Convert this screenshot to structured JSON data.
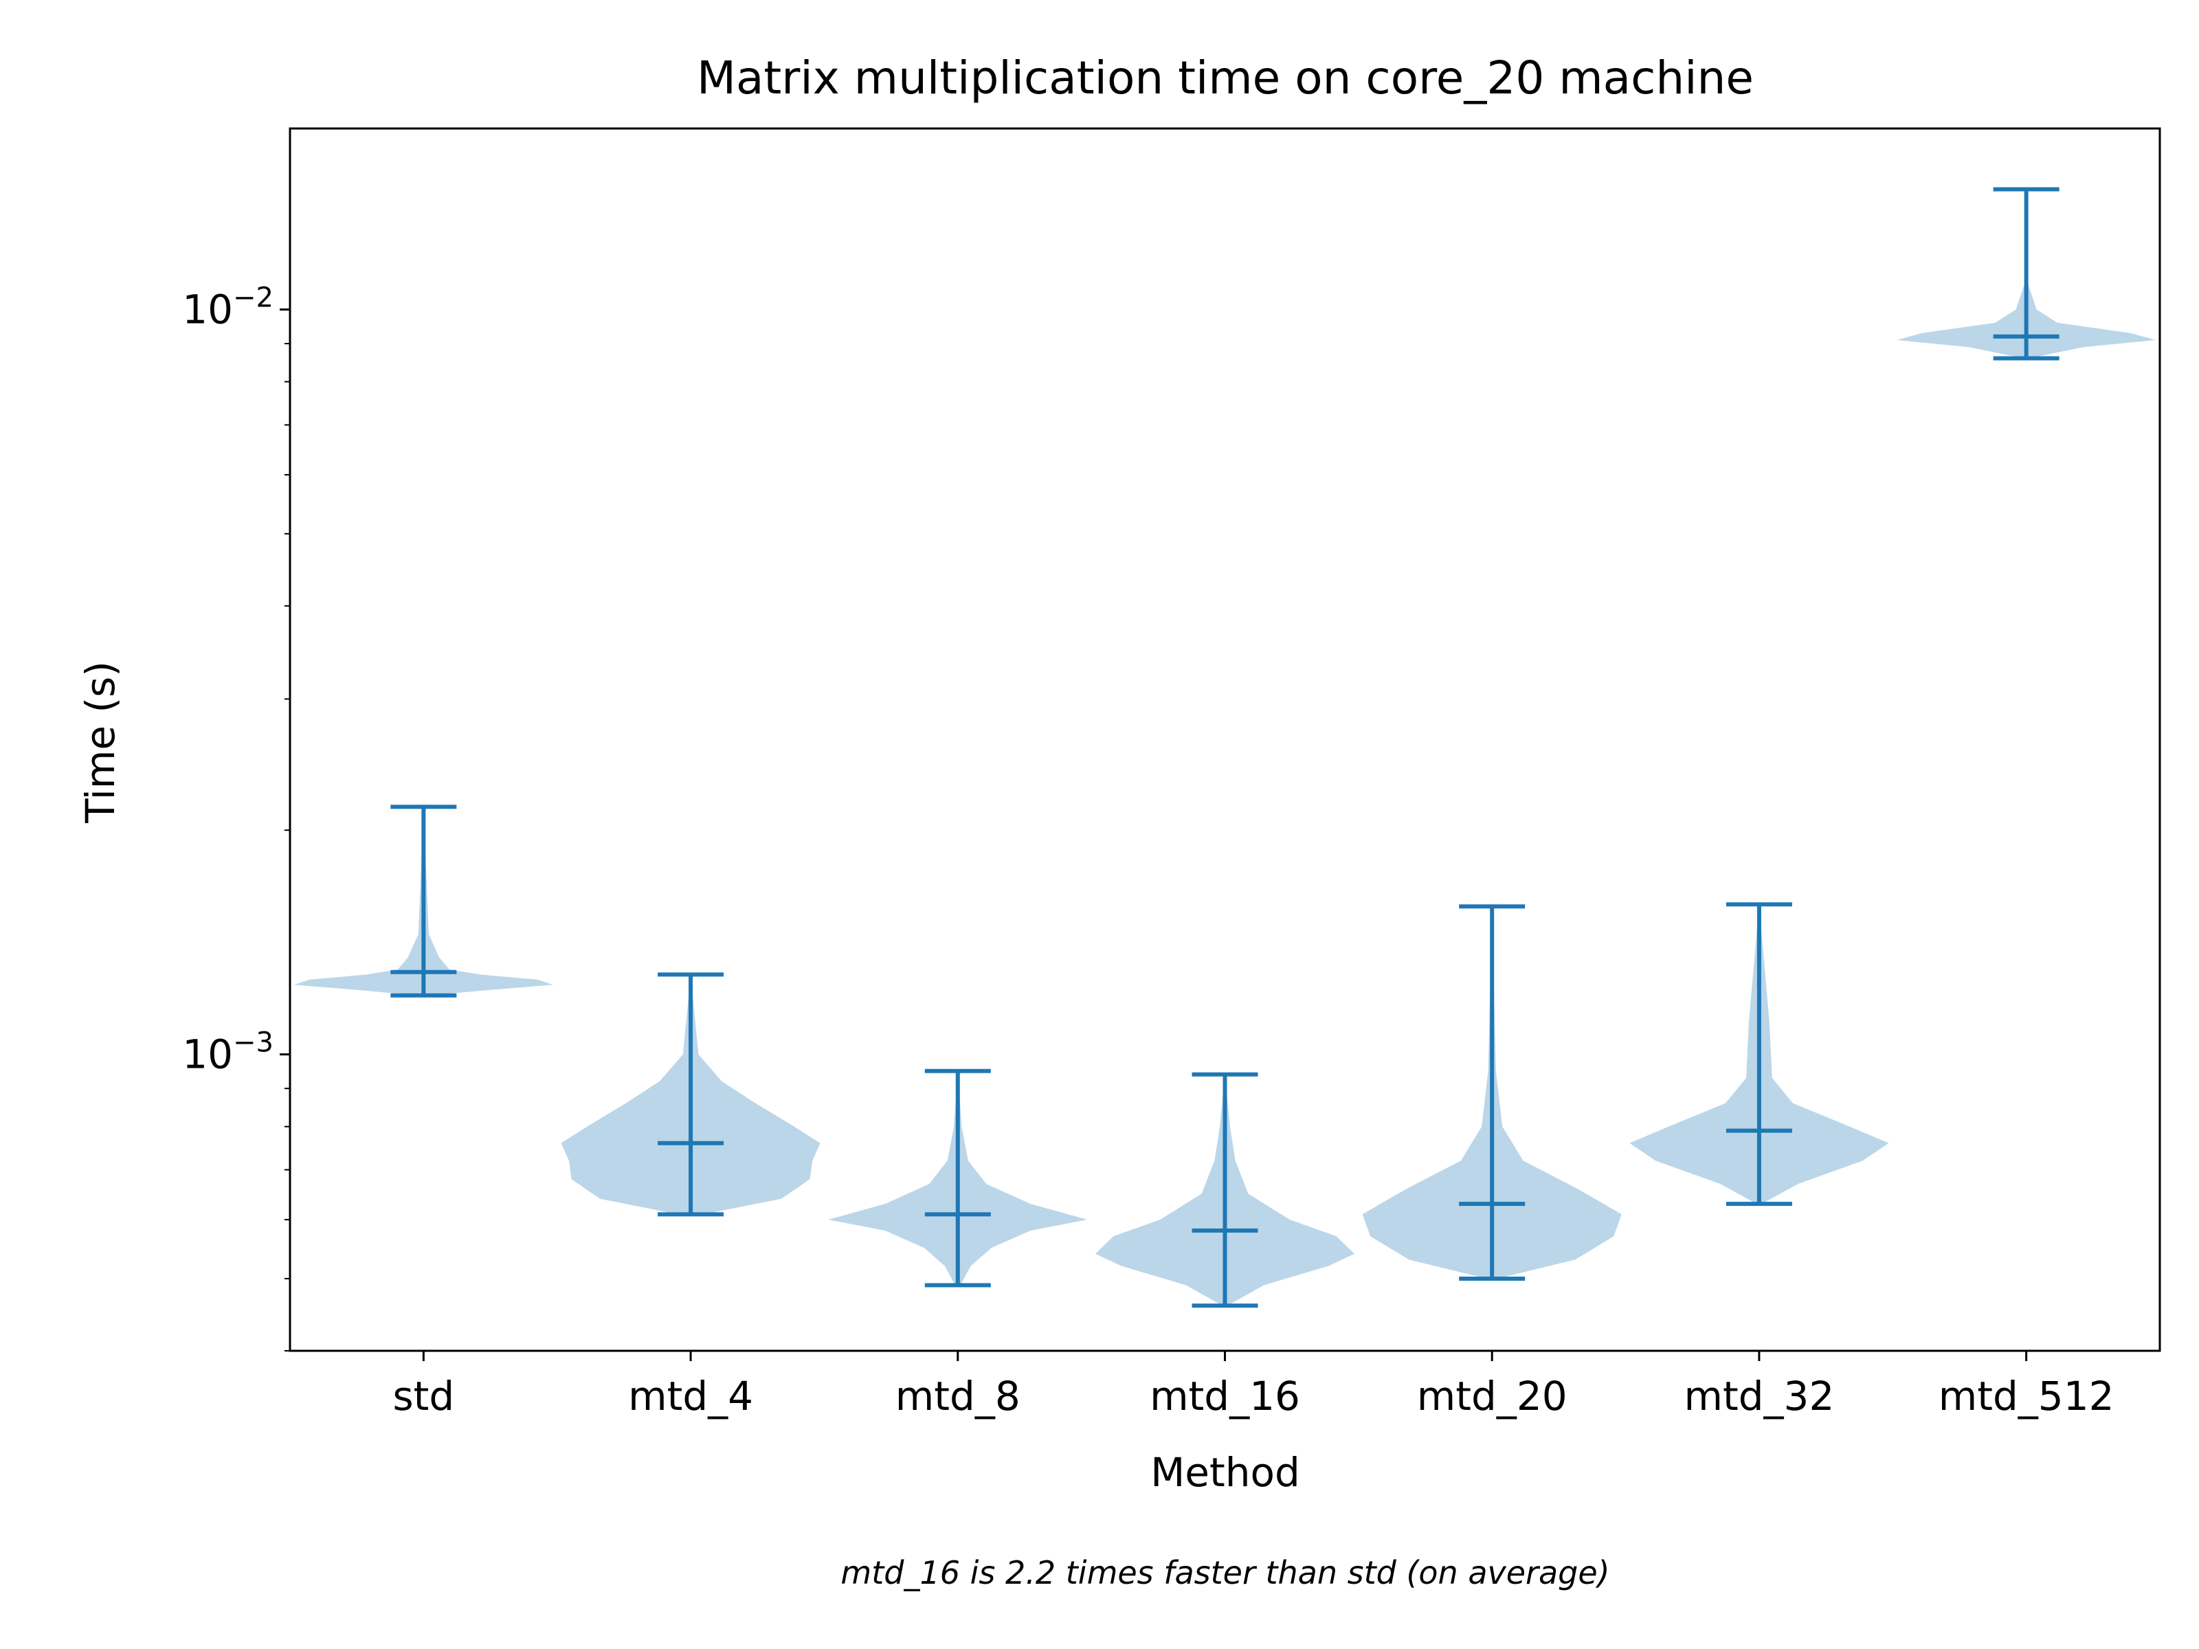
{
  "chart_data": {
    "type": "violin",
    "title": "Matrix multiplication time on core_20 machine",
    "xlabel": "Method",
    "ylabel": "Time (s)",
    "yscale": "log",
    "ylim": [
      0.0004,
      0.0175
    ],
    "ytick_labels": [
      {
        "value": 0.001,
        "base": "10",
        "exp": "−3"
      },
      {
        "value": 0.01,
        "base": "10",
        "exp": "−2"
      }
    ],
    "categories": [
      "std",
      "mtd_4",
      "mtd_8",
      "mtd_16",
      "mtd_20",
      "mtd_32",
      "mtd_512"
    ],
    "series": [
      {
        "min": 0.0012,
        "mean": 0.00129,
        "max": 0.00215,
        "profile": [
          [
            0.0012,
            0.02
          ],
          [
            0.00122,
            0.25
          ],
          [
            0.00124,
            0.5
          ],
          [
            0.00126,
            0.44
          ],
          [
            0.00128,
            0.22
          ],
          [
            0.0013,
            0.1
          ],
          [
            0.00135,
            0.06
          ],
          [
            0.00145,
            0.02
          ],
          [
            0.00215,
            0.0
          ]
        ]
      },
      {
        "min": 0.00061,
        "mean": 0.00076,
        "max": 0.00128,
        "profile": [
          [
            0.00061,
            0.05
          ],
          [
            0.00064,
            0.35
          ],
          [
            0.00068,
            0.46
          ],
          [
            0.00072,
            0.47
          ],
          [
            0.00076,
            0.5
          ],
          [
            0.0008,
            0.4
          ],
          [
            0.00086,
            0.25
          ],
          [
            0.00092,
            0.12
          ],
          [
            0.001,
            0.03
          ],
          [
            0.00128,
            0.0
          ]
        ]
      },
      {
        "min": 0.00049,
        "mean": 0.00061,
        "max": 0.00095,
        "profile": [
          [
            0.00049,
            0.01
          ],
          [
            0.00052,
            0.05
          ],
          [
            0.00055,
            0.13
          ],
          [
            0.00058,
            0.28
          ],
          [
            0.0006,
            0.5
          ],
          [
            0.00063,
            0.28
          ],
          [
            0.00067,
            0.11
          ],
          [
            0.00072,
            0.04
          ],
          [
            0.0008,
            0.015
          ],
          [
            0.00095,
            0.0
          ]
        ]
      },
      {
        "min": 0.00046,
        "mean": 0.00058,
        "max": 0.00094,
        "profile": [
          [
            0.00046,
            0.01
          ],
          [
            0.00049,
            0.15
          ],
          [
            0.00052,
            0.4
          ],
          [
            0.00054,
            0.5
          ],
          [
            0.00057,
            0.43
          ],
          [
            0.0006,
            0.25
          ],
          [
            0.00065,
            0.09
          ],
          [
            0.00072,
            0.04
          ],
          [
            0.0008,
            0.02
          ],
          [
            0.00094,
            0.0
          ]
        ]
      },
      {
        "min": 0.0005,
        "mean": 0.00063,
        "max": 0.00158,
        "profile": [
          [
            0.0005,
            0.02
          ],
          [
            0.00053,
            0.32
          ],
          [
            0.00057,
            0.47
          ],
          [
            0.00061,
            0.5
          ],
          [
            0.00066,
            0.33
          ],
          [
            0.00072,
            0.12
          ],
          [
            0.0008,
            0.04
          ],
          [
            0.00095,
            0.015
          ],
          [
            0.00158,
            0.0
          ]
        ]
      },
      {
        "min": 0.00063,
        "mean": 0.00079,
        "max": 0.00159,
        "profile": [
          [
            0.00063,
            0.01
          ],
          [
            0.00067,
            0.15
          ],
          [
            0.00072,
            0.4
          ],
          [
            0.00076,
            0.5
          ],
          [
            0.0008,
            0.35
          ],
          [
            0.00086,
            0.13
          ],
          [
            0.00093,
            0.05
          ],
          [
            0.0011,
            0.04
          ],
          [
            0.00159,
            0.0
          ]
        ]
      },
      {
        "min": 0.0086,
        "mean": 0.0092,
        "max": 0.0145,
        "profile": [
          [
            0.0086,
            0.01
          ],
          [
            0.0089,
            0.22
          ],
          [
            0.0091,
            0.5
          ],
          [
            0.0093,
            0.4
          ],
          [
            0.0096,
            0.12
          ],
          [
            0.01,
            0.04
          ],
          [
            0.011,
            0.0
          ],
          [
            0.0145,
            0.0
          ]
        ]
      }
    ],
    "colors": {
      "line": "#1f77b4",
      "fill": "#1f77b4",
      "fill_opacity": 0.3
    },
    "annotation": "mtd_16 is 2.2 times faster than std (on average)",
    "grid": false,
    "legend": "none"
  }
}
